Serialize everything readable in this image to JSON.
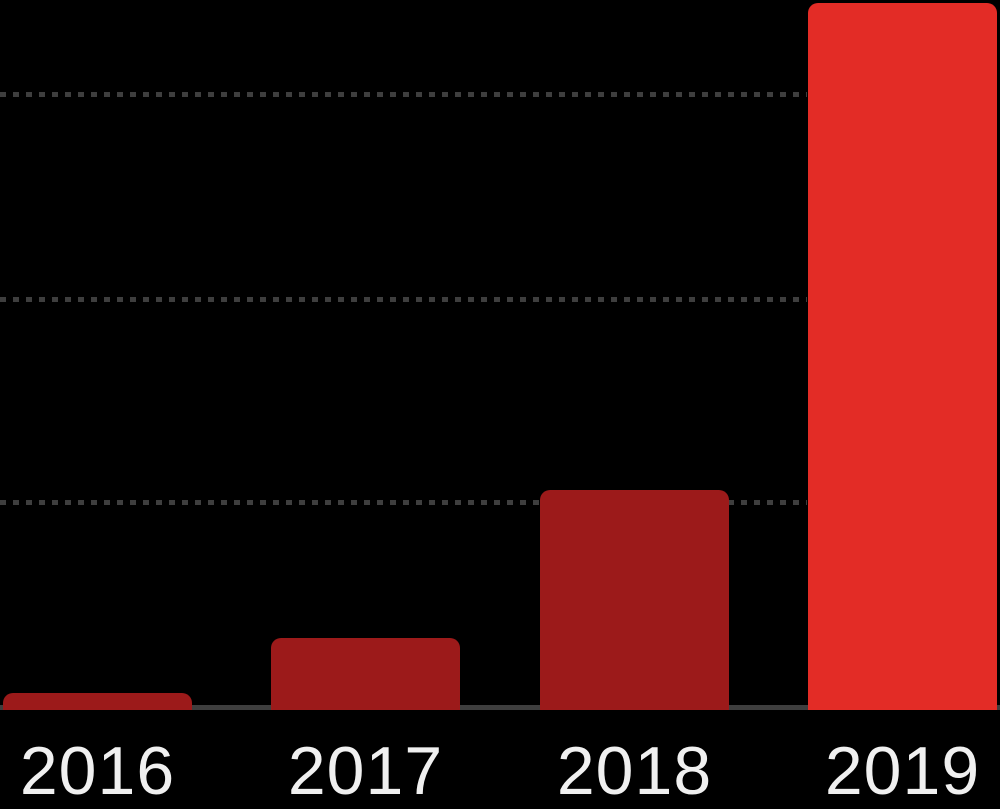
{
  "chart_data": {
    "type": "bar",
    "title": "",
    "xlabel": "",
    "ylabel": "",
    "categories": [
      "2016",
      "2017",
      "2018",
      "2019"
    ],
    "values_pct_of_max": [
      2.4,
      10.2,
      31.1,
      100
    ],
    "highlight_category": "2019",
    "y_axis_tick_labels_visible": false,
    "legend": "none",
    "grid": {
      "style": "dotted",
      "count": 3,
      "positions_pct_of_max": [
        29.3,
        58.0,
        87.0
      ]
    },
    "colors": {
      "background": "#000000",
      "bar_default": "#9C1A1A",
      "bar_highlight": "#E32C26",
      "gridline": "#3E3E3E",
      "baseline": "#3E3E3E",
      "label_text": "#F0F0F0"
    }
  }
}
